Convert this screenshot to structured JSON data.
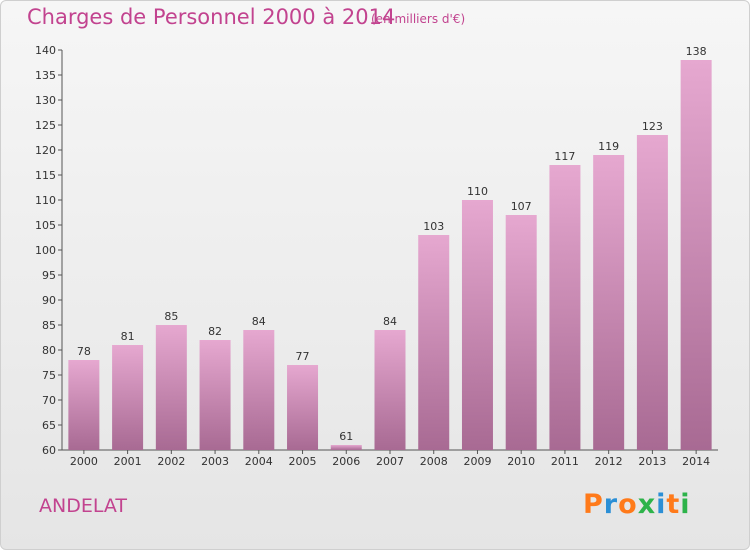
{
  "header": {
    "title": "Charges de Personnel 2000 à 2014",
    "unit_note": "(en milliers d'€)"
  },
  "footer": {
    "commune": "ANDELAT",
    "logo_text": "Proxiti"
  },
  "colors": {
    "title": "#c2438f",
    "bar_top": "#e6a8d0",
    "bar_bottom": "#a86a93",
    "logo_letters": [
      "#ff7a1a",
      "#2b8fd6",
      "#ff7a1a",
      "#2db34a",
      "#2b8fd6",
      "#ff7a1a",
      "#2db34a"
    ]
  },
  "chart_data": {
    "type": "bar",
    "categories": [
      "2000",
      "2001",
      "2002",
      "2003",
      "2004",
      "2005",
      "2006",
      "2007",
      "2008",
      "2009",
      "2010",
      "2011",
      "2012",
      "2013",
      "2014"
    ],
    "values": [
      78,
      81,
      85,
      82,
      84,
      77,
      61,
      84,
      103,
      110,
      107,
      117,
      119,
      123,
      138
    ],
    "title": "Charges de Personnel 2000 à 2014",
    "subtitle": "(en milliers d'€)",
    "ylim": [
      60,
      140
    ],
    "yticks": [
      60,
      65,
      70,
      75,
      80,
      85,
      90,
      95,
      100,
      105,
      110,
      115,
      120,
      125,
      130,
      135,
      140
    ],
    "grid": false,
    "data_labels": true
  }
}
